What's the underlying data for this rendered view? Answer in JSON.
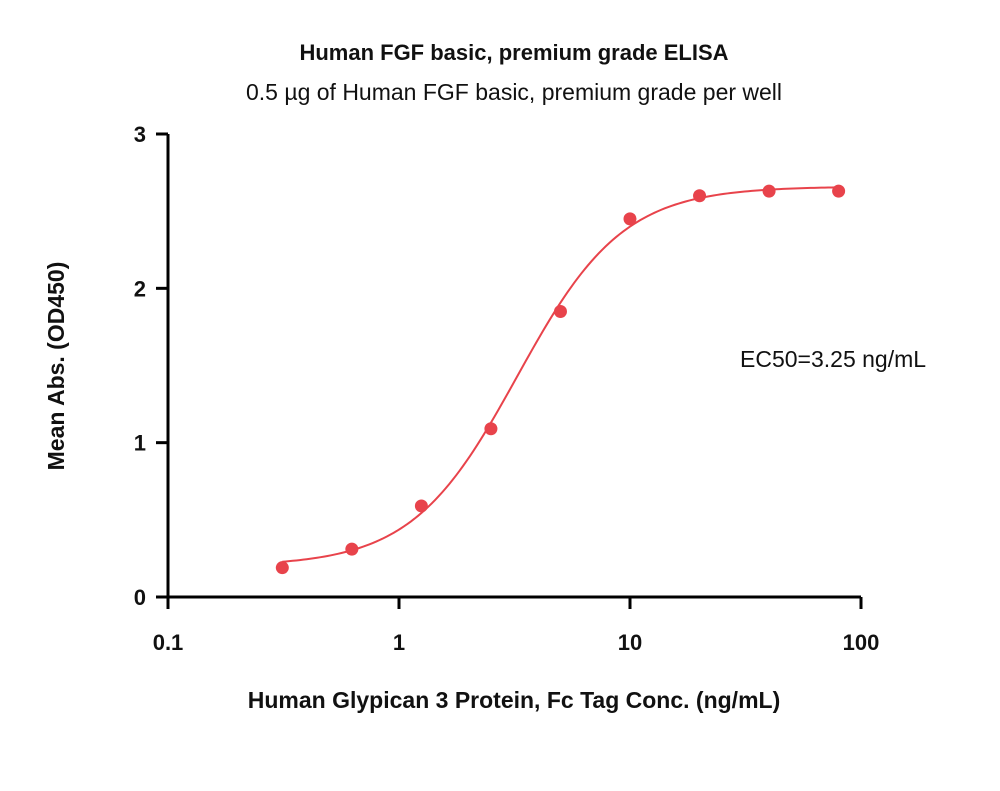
{
  "chart_data": {
    "type": "scatter",
    "title": "Human FGF basic, premium grade ELISA",
    "subtitle": "0.5 µg of Human FGF basic, premium grade per well",
    "xlabel": "Human Glypican 3 Protein, Fc Tag Conc. (ng/mL)",
    "ylabel": "Mean Abs. (OD450)",
    "x_scale": "log",
    "xlim": [
      0.1,
      100
    ],
    "ylim": [
      0,
      3
    ],
    "x_ticks": [
      0.1,
      1,
      10,
      100
    ],
    "x_tick_labels": [
      "0.1",
      "1",
      "10",
      "100"
    ],
    "y_ticks": [
      0,
      1,
      2,
      3
    ],
    "y_tick_labels": [
      "0",
      "1",
      "2",
      "3"
    ],
    "grid": false,
    "series": [
      {
        "x": [
          0.3125,
          0.625,
          1.25,
          2.5,
          5,
          10,
          20,
          40,
          80
        ],
        "y": [
          0.19,
          0.31,
          0.59,
          1.09,
          1.85,
          2.45,
          2.6,
          2.63,
          2.63
        ],
        "color": "#e8434b"
      }
    ],
    "fit": {
      "model": "4PL",
      "bottom": 0.2,
      "top": 2.66,
      "ec50": 3.25,
      "hill": 1.9,
      "x_range": [
        0.3125,
        80
      ],
      "color": "#e8434b"
    },
    "annotation": "EC50=3.25 ng/mL"
  }
}
